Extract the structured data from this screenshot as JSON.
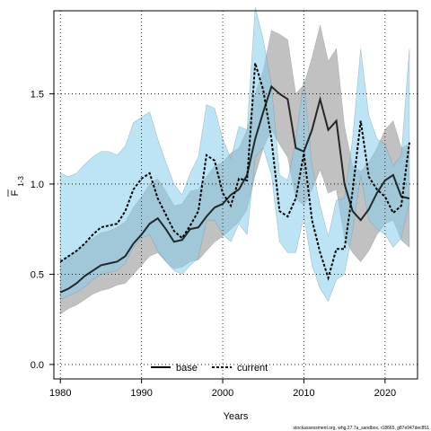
{
  "chart_data": {
    "type": "line",
    "xlabel": "Years",
    "ylabel_main": "F",
    "ylabel_sub": "1-3",
    "xlim": [
      1979.2,
      2024.0
    ],
    "ylim": [
      -0.08,
      1.96
    ],
    "xticks": [
      1980,
      1990,
      2000,
      2010,
      2020
    ],
    "yticks": [
      0.0,
      0.5,
      1.0,
      1.5
    ],
    "ytick_labels": [
      "0.0",
      "0.5",
      "1.0",
      "1.5"
    ],
    "grid": true,
    "legend_placement": "bottom-center",
    "footer": "stockassessment.org, whg.27.7a_sandbox, r18665, g87e947dec851",
    "x": [
      1980,
      1981,
      1982,
      1983,
      1984,
      1985,
      1986,
      1987,
      1988,
      1989,
      1990,
      1991,
      1992,
      1993,
      1994,
      1995,
      1996,
      1997,
      1998,
      1999,
      2000,
      2001,
      2002,
      2003,
      2004,
      2005,
      2006,
      2007,
      2008,
      2009,
      2010,
      2011,
      2012,
      2013,
      2014,
      2015,
      2016,
      2017,
      2018,
      2019,
      2020,
      2021,
      2022,
      2023
    ],
    "series": [
      {
        "name": "base",
        "color": "#000000",
        "band_color": "#bebebe",
        "values": [
          0.4,
          0.42,
          0.45,
          0.49,
          0.52,
          0.55,
          0.56,
          0.57,
          0.6,
          0.67,
          0.72,
          0.78,
          0.81,
          0.75,
          0.68,
          0.69,
          0.75,
          0.76,
          0.82,
          0.87,
          0.89,
          0.94,
          0.97,
          1.05,
          1.25,
          1.4,
          1.54,
          1.5,
          1.47,
          1.2,
          1.18,
          1.3,
          1.47,
          1.3,
          1.35,
          1.0,
          0.85,
          0.8,
          0.86,
          0.95,
          1.02,
          1.05,
          0.93,
          0.92
        ],
        "lower": [
          0.28,
          0.31,
          0.33,
          0.36,
          0.39,
          0.41,
          0.42,
          0.44,
          0.45,
          0.5,
          0.55,
          0.6,
          0.62,
          0.57,
          0.53,
          0.54,
          0.57,
          0.58,
          0.63,
          0.68,
          0.71,
          0.75,
          0.79,
          0.86,
          1.05,
          1.2,
          1.3,
          1.22,
          1.15,
          0.92,
          0.88,
          0.97,
          1.08,
          0.95,
          0.97,
          0.7,
          0.62,
          0.57,
          0.63,
          0.72,
          0.78,
          0.8,
          0.69,
          0.65
        ],
        "upper": [
          0.57,
          0.6,
          0.63,
          0.67,
          0.7,
          0.73,
          0.74,
          0.76,
          0.79,
          0.87,
          0.93,
          1.0,
          1.03,
          0.96,
          0.88,
          0.89,
          0.96,
          0.97,
          1.04,
          1.1,
          1.12,
          1.17,
          1.2,
          1.3,
          1.5,
          1.63,
          1.85,
          1.83,
          1.8,
          1.5,
          1.55,
          1.7,
          1.88,
          1.68,
          1.75,
          1.32,
          1.1,
          1.07,
          1.12,
          1.2,
          1.3,
          1.35,
          1.2,
          1.22
        ]
      },
      {
        "name": "current",
        "color": "#000000",
        "band_color": "#87ceeb",
        "values": [
          0.57,
          0.6,
          0.63,
          0.67,
          0.72,
          0.76,
          0.77,
          0.78,
          0.85,
          0.97,
          1.03,
          1.06,
          0.92,
          0.83,
          0.74,
          0.7,
          0.77,
          0.85,
          1.16,
          1.13,
          0.95,
          0.88,
          1.03,
          1.02,
          1.67,
          1.52,
          1.25,
          0.85,
          0.82,
          0.92,
          1.17,
          0.8,
          0.62,
          0.48,
          0.64,
          0.64,
          0.96,
          1.35,
          1.04,
          0.97,
          0.93,
          0.84,
          0.88,
          1.23
        ],
        "lower": [
          0.36,
          0.38,
          0.4,
          0.43,
          0.47,
          0.5,
          0.51,
          0.52,
          0.56,
          0.65,
          0.7,
          0.72,
          0.63,
          0.57,
          0.52,
          0.5,
          0.55,
          0.59,
          0.8,
          0.8,
          0.72,
          0.68,
          0.78,
          0.72,
          1.15,
          1.2,
          1.05,
          0.68,
          0.62,
          0.62,
          0.82,
          0.55,
          0.42,
          0.35,
          0.47,
          0.5,
          0.74,
          1.05,
          0.8,
          0.75,
          0.72,
          0.65,
          0.7,
          0.9
        ],
        "upper": [
          1.06,
          1.04,
          1.06,
          1.11,
          1.15,
          1.18,
          1.18,
          1.16,
          1.21,
          1.34,
          1.37,
          1.4,
          1.25,
          1.12,
          1.0,
          0.94,
          1.06,
          1.15,
          1.44,
          1.42,
          1.25,
          1.14,
          1.32,
          1.3,
          1.98,
          1.8,
          1.55,
          1.05,
          1.02,
          1.24,
          1.58,
          1.1,
          0.88,
          0.71,
          0.91,
          0.92,
          1.25,
          1.75,
          1.38,
          1.25,
          1.22,
          1.1,
          1.16,
          1.75
        ]
      }
    ]
  }
}
